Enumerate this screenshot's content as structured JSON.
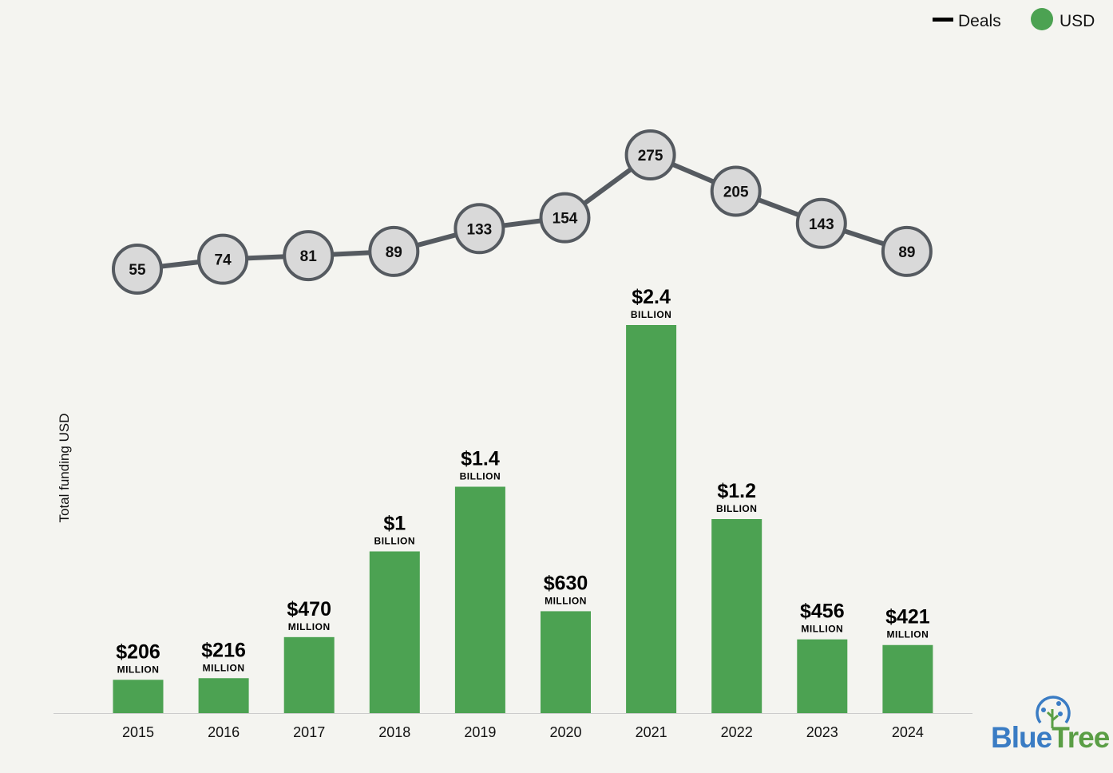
{
  "chart_data": {
    "type": "bar",
    "title": "",
    "xlabel": "",
    "ylabel": "Total funding USD",
    "categories": [
      "2015",
      "2016",
      "2017",
      "2018",
      "2019",
      "2020",
      "2021",
      "2022",
      "2023",
      "2024"
    ],
    "series": [
      {
        "name": "USD",
        "type": "bar",
        "color": "#4ca252",
        "values_millions": [
          206,
          216,
          470,
          1000,
          1400,
          630,
          2400,
          1200,
          456,
          421
        ],
        "labels": [
          "$206",
          "$216",
          "$470",
          "$1",
          "$1.4",
          "$630",
          "$2.4",
          "$1.2",
          "$456",
          "$421"
        ],
        "units": [
          "MILLION",
          "MILLION",
          "MILLION",
          "BILLION",
          "BILLION",
          "MILLION",
          "BILLION",
          "BILLION",
          "MILLION",
          "MILLION"
        ]
      },
      {
        "name": "Deals",
        "type": "line",
        "color": "#555a60",
        "values": [
          55,
          74,
          81,
          89,
          133,
          154,
          275,
          205,
          143,
          89
        ]
      }
    ],
    "legend": {
      "position": "top-right",
      "items": [
        "Deals",
        "USD"
      ]
    },
    "grid": false
  },
  "logo": {
    "text_blue": "Blue",
    "text_green": "Tree"
  }
}
